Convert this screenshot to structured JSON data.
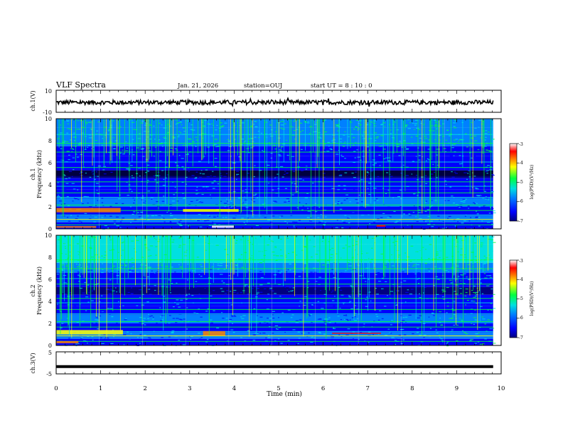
{
  "header": {
    "title": "VLF Spectra",
    "date": "Jan. 21, 2026",
    "station": "station=OUJ",
    "start_ut": "start UT =  8 : 10 : 0"
  },
  "chart_data": [
    {
      "type": "line",
      "panel": "ch1-waveform",
      "ylabel": "ch.1(V)",
      "yticks": [
        "10",
        "-10"
      ],
      "ylim": [
        -10,
        10
      ],
      "x": [
        0,
        9.82
      ],
      "description_values": {
        "mean_level": -1.0,
        "noise_amplitude": 2.0
      }
    },
    {
      "type": "heatmap",
      "panel": "ch1-spectrogram",
      "ylabel_line1": "ch.1",
      "ylabel_line2": "Frequency (kHz)",
      "yticks": [
        "0",
        "2",
        "4",
        "6",
        "8",
        "10"
      ],
      "ylim": [
        0,
        10
      ],
      "xlim": [
        0,
        10
      ],
      "data_end_min": 9.82,
      "colorbar": {
        "label": "log(PSD)(V²/Hz)",
        "ticks": [
          "-3",
          "-4",
          "-5",
          "-6",
          "-7"
        ],
        "range": [
          -7,
          -3
        ]
      }
    },
    {
      "type": "heatmap",
      "panel": "ch2-spectrogram",
      "ylabel_line1": "ch.2",
      "ylabel_line2": "Frequency (kHz)",
      "yticks": [
        "0",
        "2",
        "4",
        "6",
        "8",
        "10"
      ],
      "ylim": [
        0,
        10
      ],
      "xlim": [
        0,
        10
      ],
      "data_end_min": 9.82,
      "regime_change_min": 8.55,
      "colorbar": {
        "label": "log(PSD)(V²/Hz)",
        "ticks": [
          "-3",
          "-4",
          "-5",
          "-6",
          "-7"
        ],
        "range": [
          -7,
          -3
        ]
      }
    },
    {
      "type": "line",
      "panel": "ch3-waveform",
      "ylabel": "ch.3(V)",
      "yticks": [
        "5",
        "-5"
      ],
      "ylim": [
        -5,
        5
      ],
      "x": [
        0,
        9.82
      ],
      "y_level": -1.7
    }
  ],
  "xaxis": {
    "label": "Time (min)",
    "ticks": [
      "0",
      "1",
      "2",
      "3",
      "4",
      "5",
      "6",
      "7",
      "8",
      "9",
      "10"
    ],
    "xlim": [
      0,
      10
    ]
  },
  "colors": {
    "colormap": [
      "#000080",
      "#0000ff",
      "#0080ff",
      "#00e0e0",
      "#00ff40",
      "#ffff00",
      "#ff8000",
      "#ff0000",
      "#ffffff"
    ]
  }
}
